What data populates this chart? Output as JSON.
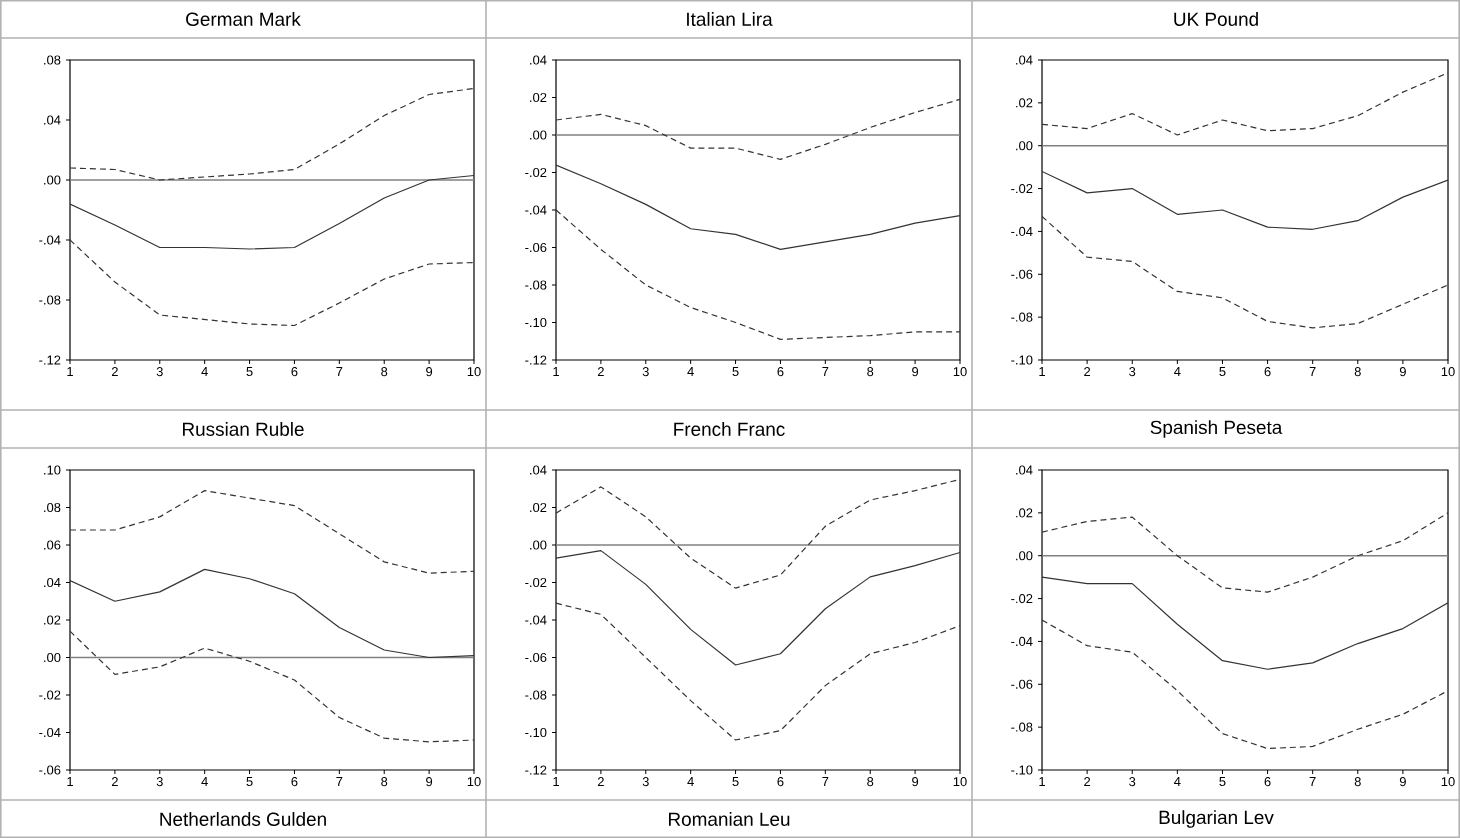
{
  "chart_data": [
    {
      "type": "line",
      "title": "German Mark",
      "x": [
        1,
        2,
        3,
        4,
        5,
        6,
        7,
        8,
        9,
        10
      ],
      "xlim": [
        1,
        10
      ],
      "xticks": [
        1,
        2,
        3,
        4,
        5,
        6,
        7,
        8,
        9,
        10
      ],
      "ylim": [
        -0.12,
        0.08
      ],
      "yticks": [
        {
          "value": -0.12,
          "label": "-.12"
        },
        {
          "value": -0.08,
          "label": "-.08"
        },
        {
          "value": -0.04,
          "label": "-.04"
        },
        {
          "value": 0,
          "label": ".00"
        },
        {
          "value": 0.04,
          "label": ".04"
        },
        {
          "value": 0.08,
          "label": ".08"
        }
      ],
      "ref_lines": [
        {
          "axis": "y",
          "value": 0,
          "color": "#808080"
        }
      ],
      "series": [
        {
          "color": "#333333",
          "line_style": "dashed",
          "values": [
            0.008,
            0.007,
            0.0,
            0.002,
            0.004,
            0.007,
            0.024,
            0.043,
            0.057,
            0.061
          ]
        },
        {
          "color": "#333333",
          "line_style": "solid",
          "values": [
            -0.016,
            -0.03,
            -0.045,
            -0.045,
            -0.046,
            -0.045,
            -0.029,
            -0.012,
            0.0,
            0.003
          ]
        },
        {
          "color": "#333333",
          "line_style": "dashed",
          "values": [
            -0.04,
            -0.068,
            -0.09,
            -0.093,
            -0.096,
            -0.097,
            -0.082,
            -0.066,
            -0.056,
            -0.055
          ]
        }
      ]
    },
    {
      "type": "line",
      "title": "Italian Lira",
      "x": [
        1,
        2,
        3,
        4,
        5,
        6,
        7,
        8,
        9,
        10
      ],
      "xlim": [
        1,
        10
      ],
      "xticks": [
        1,
        2,
        3,
        4,
        5,
        6,
        7,
        8,
        9,
        10
      ],
      "ylim": [
        -0.12,
        0.04
      ],
      "yticks": [
        {
          "value": -0.12,
          "label": "-.12"
        },
        {
          "value": -0.1,
          "label": "-.10"
        },
        {
          "value": -0.08,
          "label": "-.08"
        },
        {
          "value": -0.06,
          "label": "-.06"
        },
        {
          "value": -0.04,
          "label": "-.04"
        },
        {
          "value": -0.02,
          "label": "-.02"
        },
        {
          "value": 0,
          "label": ".00"
        },
        {
          "value": 0.02,
          "label": ".02"
        },
        {
          "value": 0.04,
          "label": ".04"
        }
      ],
      "ref_lines": [
        {
          "axis": "y",
          "value": 0,
          "color": "#808080"
        }
      ],
      "series": [
        {
          "color": "#333333",
          "line_style": "dashed",
          "values": [
            0.008,
            0.011,
            0.005,
            -0.007,
            -0.007,
            -0.013,
            -0.005,
            0.004,
            0.012,
            0.019
          ]
        },
        {
          "color": "#333333",
          "line_style": "solid",
          "values": [
            -0.016,
            -0.026,
            -0.037,
            -0.05,
            -0.053,
            -0.061,
            -0.057,
            -0.053,
            -0.047,
            -0.043
          ]
        },
        {
          "color": "#333333",
          "line_style": "dashed",
          "values": [
            -0.04,
            -0.061,
            -0.08,
            -0.092,
            -0.1,
            -0.109,
            -0.108,
            -0.107,
            -0.105,
            -0.105
          ]
        }
      ]
    },
    {
      "type": "line",
      "title": "UK Pound",
      "x": [
        1,
        2,
        3,
        4,
        5,
        6,
        7,
        8,
        9,
        10
      ],
      "xlim": [
        1,
        10
      ],
      "xticks": [
        1,
        2,
        3,
        4,
        5,
        6,
        7,
        8,
        9,
        10
      ],
      "ylim": [
        -0.1,
        0.04
      ],
      "yticks": [
        {
          "value": -0.1,
          "label": "-.10"
        },
        {
          "value": -0.08,
          "label": "-.08"
        },
        {
          "value": -0.06,
          "label": "-.06"
        },
        {
          "value": -0.04,
          "label": "-.04"
        },
        {
          "value": -0.02,
          "label": "-.02"
        },
        {
          "value": 0,
          "label": ".00"
        },
        {
          "value": 0.02,
          "label": ".02"
        },
        {
          "value": 0.04,
          "label": ".04"
        }
      ],
      "ref_lines": [
        {
          "axis": "y",
          "value": 0,
          "color": "#808080"
        }
      ],
      "series": [
        {
          "color": "#333333",
          "line_style": "dashed",
          "values": [
            0.01,
            0.008,
            0.015,
            0.005,
            0.012,
            0.007,
            0.008,
            0.014,
            0.025,
            0.034
          ]
        },
        {
          "color": "#333333",
          "line_style": "solid",
          "values": [
            -0.012,
            -0.022,
            -0.02,
            -0.032,
            -0.03,
            -0.038,
            -0.039,
            -0.035,
            -0.024,
            -0.016
          ]
        },
        {
          "color": "#333333",
          "line_style": "dashed",
          "values": [
            -0.033,
            -0.052,
            -0.054,
            -0.068,
            -0.071,
            -0.082,
            -0.085,
            -0.083,
            -0.074,
            -0.065
          ]
        }
      ]
    },
    {
      "type": "line",
      "title": "Russian Ruble",
      "x": [
        1,
        2,
        3,
        4,
        5,
        6,
        7,
        8,
        9,
        10
      ],
      "xlim": [
        1,
        10
      ],
      "xticks": [
        1,
        2,
        3,
        4,
        5,
        6,
        7,
        8,
        9,
        10
      ],
      "ylim": [
        -0.06,
        0.1
      ],
      "yticks": [
        {
          "value": -0.06,
          "label": "-.06"
        },
        {
          "value": -0.04,
          "label": "-.04"
        },
        {
          "value": -0.02,
          "label": "-.02"
        },
        {
          "value": 0,
          "label": ".00"
        },
        {
          "value": 0.02,
          "label": ".02"
        },
        {
          "value": 0.04,
          "label": ".04"
        },
        {
          "value": 0.06,
          "label": ".06"
        },
        {
          "value": 0.08,
          "label": ".08"
        },
        {
          "value": 0.1,
          "label": ".10"
        }
      ],
      "ref_lines": [
        {
          "axis": "y",
          "value": 0,
          "color": "#808080"
        }
      ],
      "series": [
        {
          "color": "#333333",
          "line_style": "dashed",
          "values": [
            0.068,
            0.068,
            0.075,
            0.089,
            0.085,
            0.081,
            0.066,
            0.051,
            0.045,
            0.046
          ]
        },
        {
          "color": "#333333",
          "line_style": "solid",
          "values": [
            0.041,
            0.03,
            0.035,
            0.047,
            0.042,
            0.034,
            0.016,
            0.004,
            0.0,
            0.001
          ]
        },
        {
          "color": "#333333",
          "line_style": "dashed",
          "values": [
            0.014,
            -0.009,
            -0.005,
            0.005,
            -0.002,
            -0.012,
            -0.032,
            -0.043,
            -0.045,
            -0.044
          ]
        }
      ]
    },
    {
      "type": "line",
      "title": "French Franc",
      "x": [
        1,
        2,
        3,
        4,
        5,
        6,
        7,
        8,
        9,
        10
      ],
      "xlim": [
        1,
        10
      ],
      "xticks": [
        1,
        2,
        3,
        4,
        5,
        6,
        7,
        8,
        9,
        10
      ],
      "ylim": [
        -0.12,
        0.04
      ],
      "yticks": [
        {
          "value": -0.12,
          "label": "-.12"
        },
        {
          "value": -0.1,
          "label": "-.10"
        },
        {
          "value": -0.08,
          "label": "-.08"
        },
        {
          "value": -0.06,
          "label": "-.06"
        },
        {
          "value": -0.04,
          "label": "-.04"
        },
        {
          "value": -0.02,
          "label": "-.02"
        },
        {
          "value": 0,
          "label": ".00"
        },
        {
          "value": 0.02,
          "label": ".02"
        },
        {
          "value": 0.04,
          "label": ".04"
        }
      ],
      "ref_lines": [
        {
          "axis": "y",
          "value": 0,
          "color": "#808080"
        }
      ],
      "series": [
        {
          "color": "#333333",
          "line_style": "dashed",
          "values": [
            0.017,
            0.031,
            0.015,
            -0.007,
            -0.023,
            -0.016,
            0.01,
            0.024,
            0.029,
            0.035
          ]
        },
        {
          "color": "#333333",
          "line_style": "solid",
          "values": [
            -0.007,
            -0.003,
            -0.021,
            -0.045,
            -0.064,
            -0.058,
            -0.034,
            -0.017,
            -0.011,
            -0.004
          ]
        },
        {
          "color": "#333333",
          "line_style": "dashed",
          "values": [
            -0.031,
            -0.037,
            -0.06,
            -0.083,
            -0.104,
            -0.099,
            -0.075,
            -0.058,
            -0.052,
            -0.043
          ]
        }
      ]
    },
    {
      "type": "line",
      "title": "Spanish Peseta",
      "x": [
        1,
        2,
        3,
        4,
        5,
        6,
        7,
        8,
        9,
        10
      ],
      "xlim": [
        1,
        10
      ],
      "xticks": [
        1,
        2,
        3,
        4,
        5,
        6,
        7,
        8,
        9,
        10
      ],
      "ylim": [
        -0.1,
        0.04
      ],
      "yticks": [
        {
          "value": -0.1,
          "label": "-.10"
        },
        {
          "value": -0.08,
          "label": "-.08"
        },
        {
          "value": -0.06,
          "label": "-.06"
        },
        {
          "value": -0.04,
          "label": "-.04"
        },
        {
          "value": -0.02,
          "label": "-.02"
        },
        {
          "value": 0,
          "label": ".00"
        },
        {
          "value": 0.02,
          "label": ".02"
        },
        {
          "value": 0.04,
          "label": ".04"
        }
      ],
      "ref_lines": [
        {
          "axis": "y",
          "value": 0,
          "color": "#808080"
        }
      ],
      "series": [
        {
          "color": "#333333",
          "line_style": "dashed",
          "values": [
            0.011,
            0.016,
            0.018,
            0.0,
            -0.015,
            -0.017,
            -0.01,
            0.0,
            0.007,
            0.02
          ]
        },
        {
          "color": "#333333",
          "line_style": "solid",
          "values": [
            -0.01,
            -0.013,
            -0.013,
            -0.032,
            -0.049,
            -0.053,
            -0.05,
            -0.041,
            -0.034,
            -0.022
          ]
        },
        {
          "color": "#333333",
          "line_style": "dashed",
          "values": [
            -0.03,
            -0.042,
            -0.045,
            -0.063,
            -0.083,
            -0.09,
            -0.089,
            -0.081,
            -0.074,
            -0.063
          ]
        }
      ]
    },
    {
      "type": "other",
      "title": "Netherlands Gulden"
    },
    {
      "type": "other",
      "title": "Romanian Leu"
    },
    {
      "type": "other",
      "title": "Bulgarian Lev"
    }
  ]
}
